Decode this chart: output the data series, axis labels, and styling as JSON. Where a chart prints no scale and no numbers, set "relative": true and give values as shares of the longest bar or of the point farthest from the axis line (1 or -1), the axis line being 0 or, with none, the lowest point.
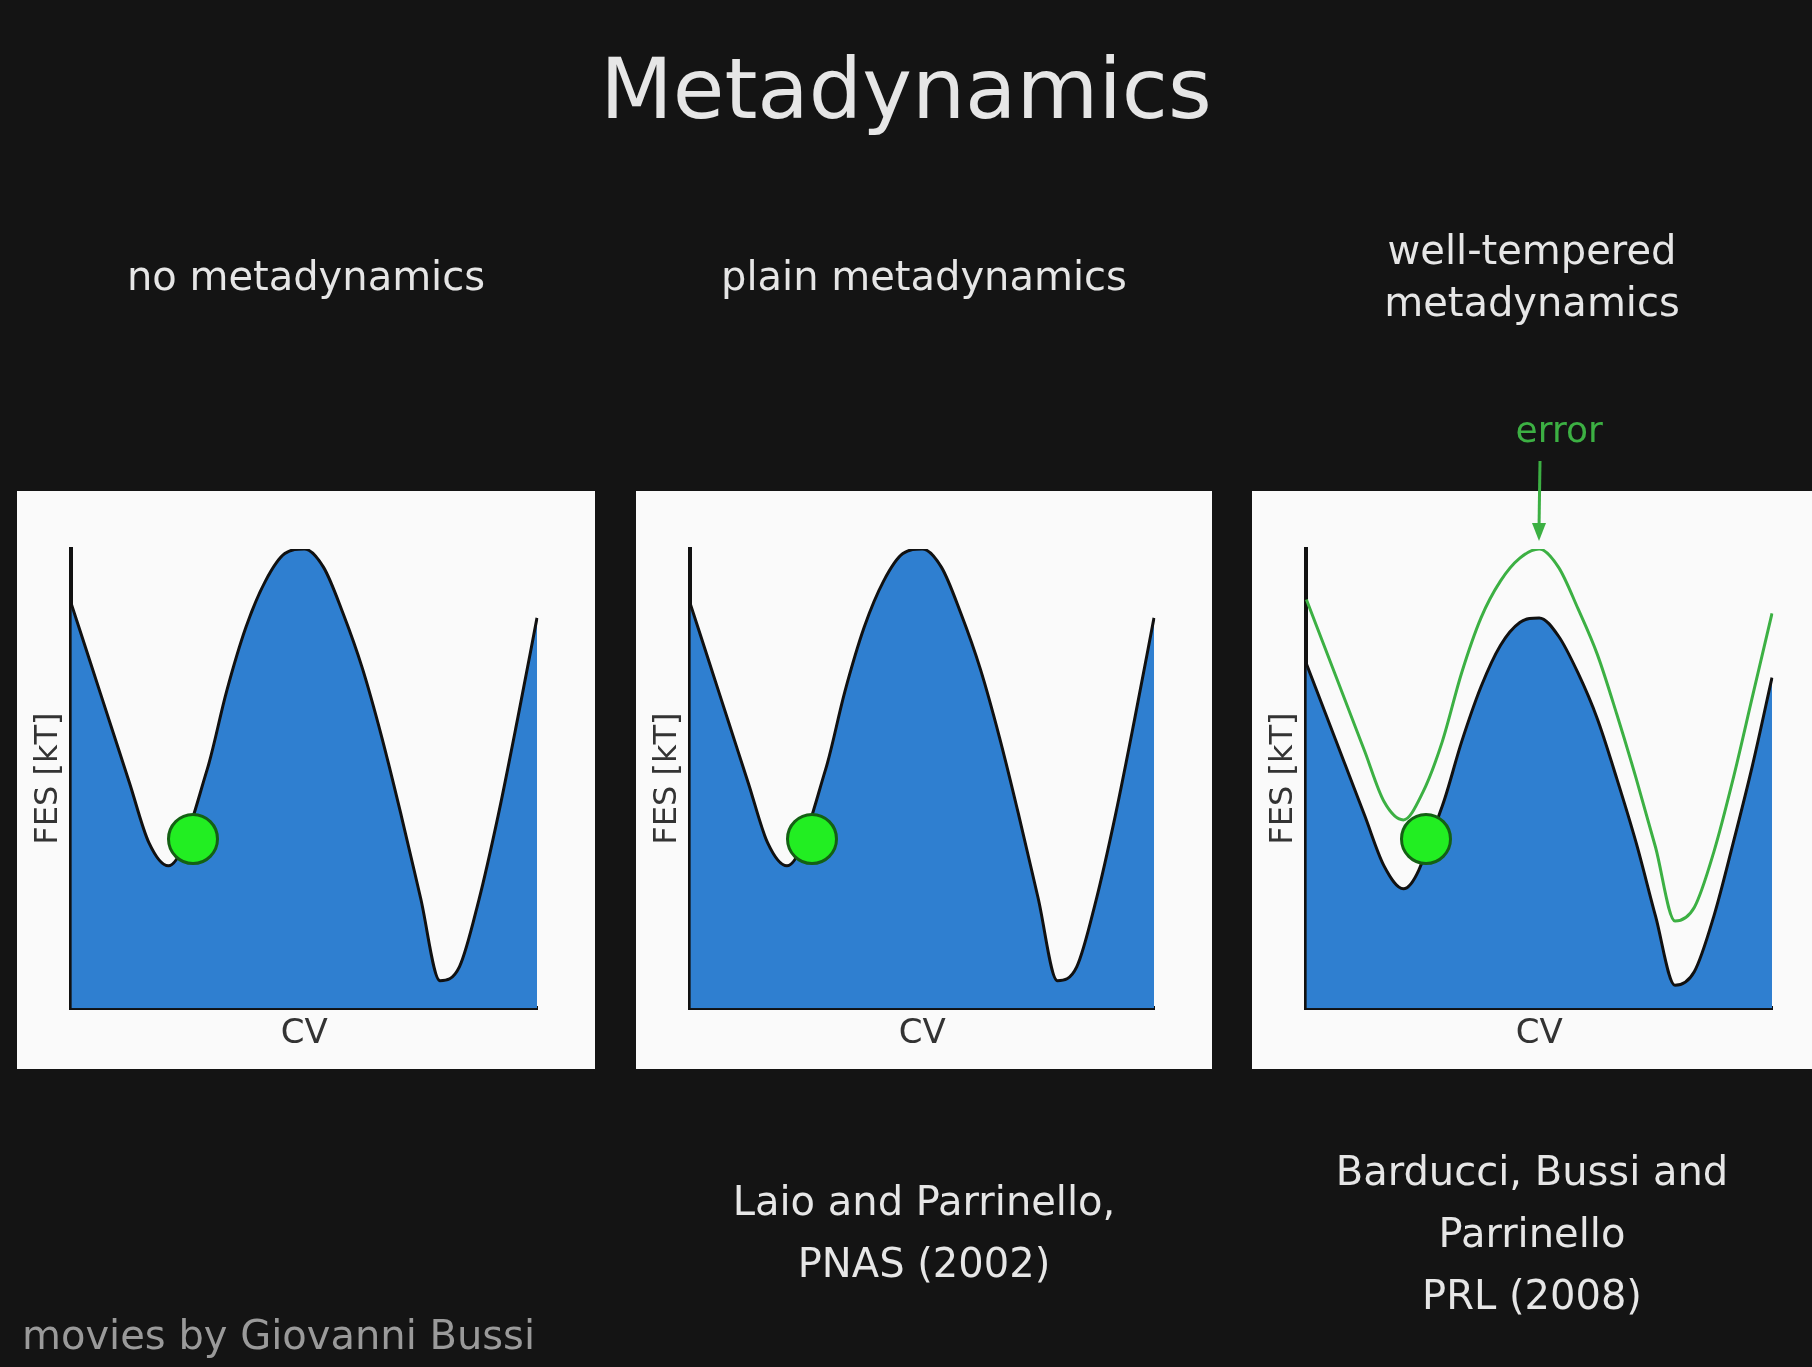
{
  "chart_data": [
    {
      "type": "other",
      "title": "Metadynamics",
      "annotations": [
        "movies by Giovanni Bussi"
      ]
    },
    {
      "type": "area",
      "title": "no metadynamics",
      "xlabel": "CV",
      "ylabel": "FES [kT]",
      "relative": true,
      "legend": false,
      "grid": false,
      "categories": [
        null,
        null,
        null,
        null,
        null,
        null,
        null,
        null,
        null,
        null,
        null,
        null,
        null,
        null,
        null,
        null,
        null,
        null,
        null,
        null,
        null,
        null,
        null,
        null,
        null
      ],
      "series": [
        {
          "color": "#2f7fd0",
          "values": [
            0.88,
            0.75,
            0.62,
            0.49,
            0.36,
            0.31,
            null,
            0.52,
            0.69,
            0.83,
            0.93,
            0.99,
            1,
            0.96,
            0.86,
            0.74,
            0.59,
            0.42,
            0.24,
            0.06,
            0.09,
            0.235,
            0.42,
            0.63,
            0.85
          ]
        }
      ]
    },
    {
      "type": "area",
      "title": "plain metadynamics",
      "xlabel": "CV",
      "ylabel": "FES [kT]",
      "relative": true,
      "legend": false,
      "grid": false,
      "categories": [
        null,
        null,
        null,
        null,
        null,
        null,
        null,
        null,
        null,
        null,
        null,
        null,
        null,
        null,
        null,
        null,
        null,
        null,
        null,
        null,
        null,
        null,
        null,
        null,
        null
      ],
      "series": [
        {
          "color": "#2f7fd0",
          "values": [
            0.88,
            0.75,
            0.62,
            0.49,
            0.36,
            0.31,
            null,
            0.52,
            0.69,
            0.83,
            0.93,
            0.99,
            1,
            0.96,
            0.86,
            0.74,
            0.59,
            0.42,
            0.24,
            0.06,
            0.09,
            0.235,
            0.42,
            0.63,
            0.85
          ]
        }
      ],
      "annotations": [
        "Laio and Parrinello,\nPNAS (2002)"
      ]
    },
    {
      "type": "area",
      "title": "well-tempered metadynamics",
      "xlabel": "CV",
      "ylabel": "FES [kT]",
      "relative": true,
      "legend": false,
      "grid": false,
      "categories": [
        null,
        null,
        null,
        null,
        null,
        null,
        null,
        null,
        null,
        null,
        null,
        null,
        null,
        null,
        null,
        null,
        null,
        null,
        null,
        null,
        null,
        null,
        null,
        null,
        null
      ],
      "series": [
        {
          "color": "#2f7fd0",
          "values": [
            0.75,
            0.64,
            0.53,
            0.42,
            0.31,
            0.26,
            null,
            0.44,
            0.58,
            0.7,
            0.79,
            0.84,
            0.85,
            0.81,
            0.73,
            0.63,
            0.5,
            0.36,
            0.2,
            0.05,
            0.08,
            0.2,
            0.36,
            0.53,
            0.72
          ]
        },
        {
          "type": "line",
          "name": "error",
          "color": "#3cb043",
          "values": [
            0.89,
            0.78,
            0.67,
            0.56,
            0.45,
            0.41,
            0.47,
            0.58,
            0.73,
            0.85,
            0.93,
            0.98,
            1,
            0.96,
            0.87,
            0.77,
            0.64,
            0.5,
            0.35,
            0.19,
            0.22,
            0.34,
            0.5,
            0.68,
            0.86
          ]
        }
      ],
      "annotations": [
        "Barducci, Bussi and\nParrinello\nPRL (2008)"
      ]
    }
  ]
}
